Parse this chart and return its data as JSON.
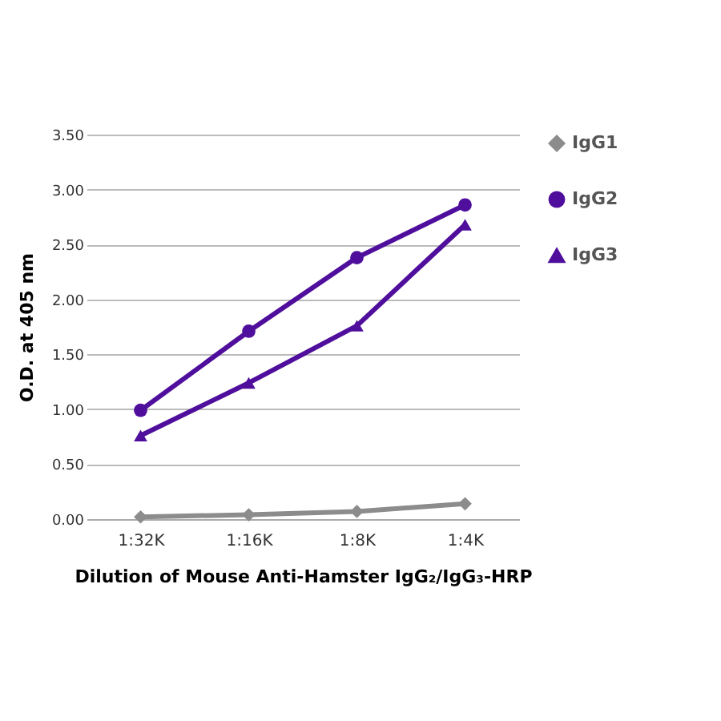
{
  "chart_data": {
    "type": "line",
    "xlabel": "Dilution of Mouse Anti-Hamster IgG₂/IgG₃-HRP",
    "ylabel": "O.D. at 405 nm",
    "categories": [
      "1:32K",
      "1:16K",
      "1:8K",
      "1:4K"
    ],
    "series": [
      {
        "name": "IgG1",
        "color": "#8c8c8c",
        "marker": "diamond",
        "values": [
          0.02,
          0.04,
          0.07,
          0.14
        ]
      },
      {
        "name": "IgG2",
        "color": "#4f0f9c",
        "marker": "circle",
        "values": [
          0.99,
          1.71,
          2.38,
          2.86
        ]
      },
      {
        "name": "IgG3",
        "color": "#4f0f9c",
        "marker": "triangle",
        "values": [
          0.76,
          1.24,
          1.76,
          2.68
        ]
      }
    ],
    "ylim": [
      0,
      3.5
    ],
    "yticks": [
      {
        "value": 0,
        "label": "0.00"
      },
      {
        "value": 0.5,
        "label": "0.50"
      },
      {
        "value": 1,
        "label": "1.00"
      },
      {
        "value": 1.5,
        "label": "1.50"
      },
      {
        "value": 2,
        "label": "2.00"
      },
      {
        "value": 2.5,
        "label": "2.50"
      },
      {
        "value": 3,
        "label": "3.00"
      },
      {
        "value": 3.5,
        "label": "3.50"
      }
    ],
    "grid": "y",
    "legend": "right",
    "line_style": "solid"
  }
}
